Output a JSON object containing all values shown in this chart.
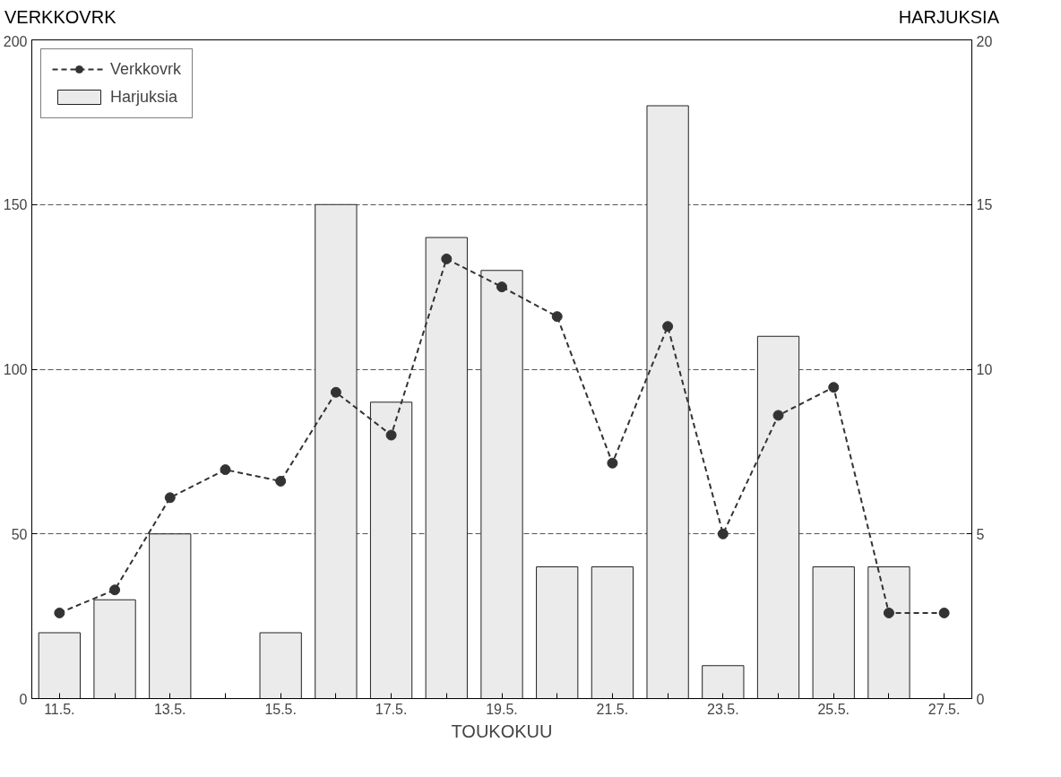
{
  "chart_data": {
    "type": "bar",
    "ylabel": "VERKKOVRK",
    "y2label": "HARJUKSIA",
    "xlabel": "TOUKOKUU",
    "categories": [
      "11.5.",
      null,
      "13.5.",
      null,
      "15.5.",
      null,
      "17.5.",
      null,
      "19.5.",
      null,
      "21.5.",
      null,
      "23.5.",
      null,
      "25.5.",
      null,
      "27.5."
    ],
    "series": [
      {
        "name": "Verkkovrk",
        "type": "line",
        "color": "#333333",
        "marker": "circle",
        "line_style": "dashed",
        "values": [
          26,
          33,
          61,
          69.5,
          66,
          93,
          80,
          133.5,
          125,
          116,
          71.5,
          113,
          50,
          86,
          94.5,
          26,
          26
        ]
      },
      {
        "name": "Harjuksia",
        "axis": "y2",
        "color": "#ebebeb",
        "values": [
          2,
          3,
          5,
          null,
          2,
          15,
          9,
          14,
          13,
          4,
          4,
          18,
          1,
          11,
          4,
          4,
          null
        ]
      }
    ],
    "ylim": [
      0,
      200
    ],
    "yticks": [
      0,
      50,
      100,
      150,
      200
    ],
    "y2lim": [
      0,
      20
    ],
    "y2ticks": [
      0,
      5,
      10,
      15,
      20
    ],
    "grid": "y",
    "legend": "top left"
  }
}
